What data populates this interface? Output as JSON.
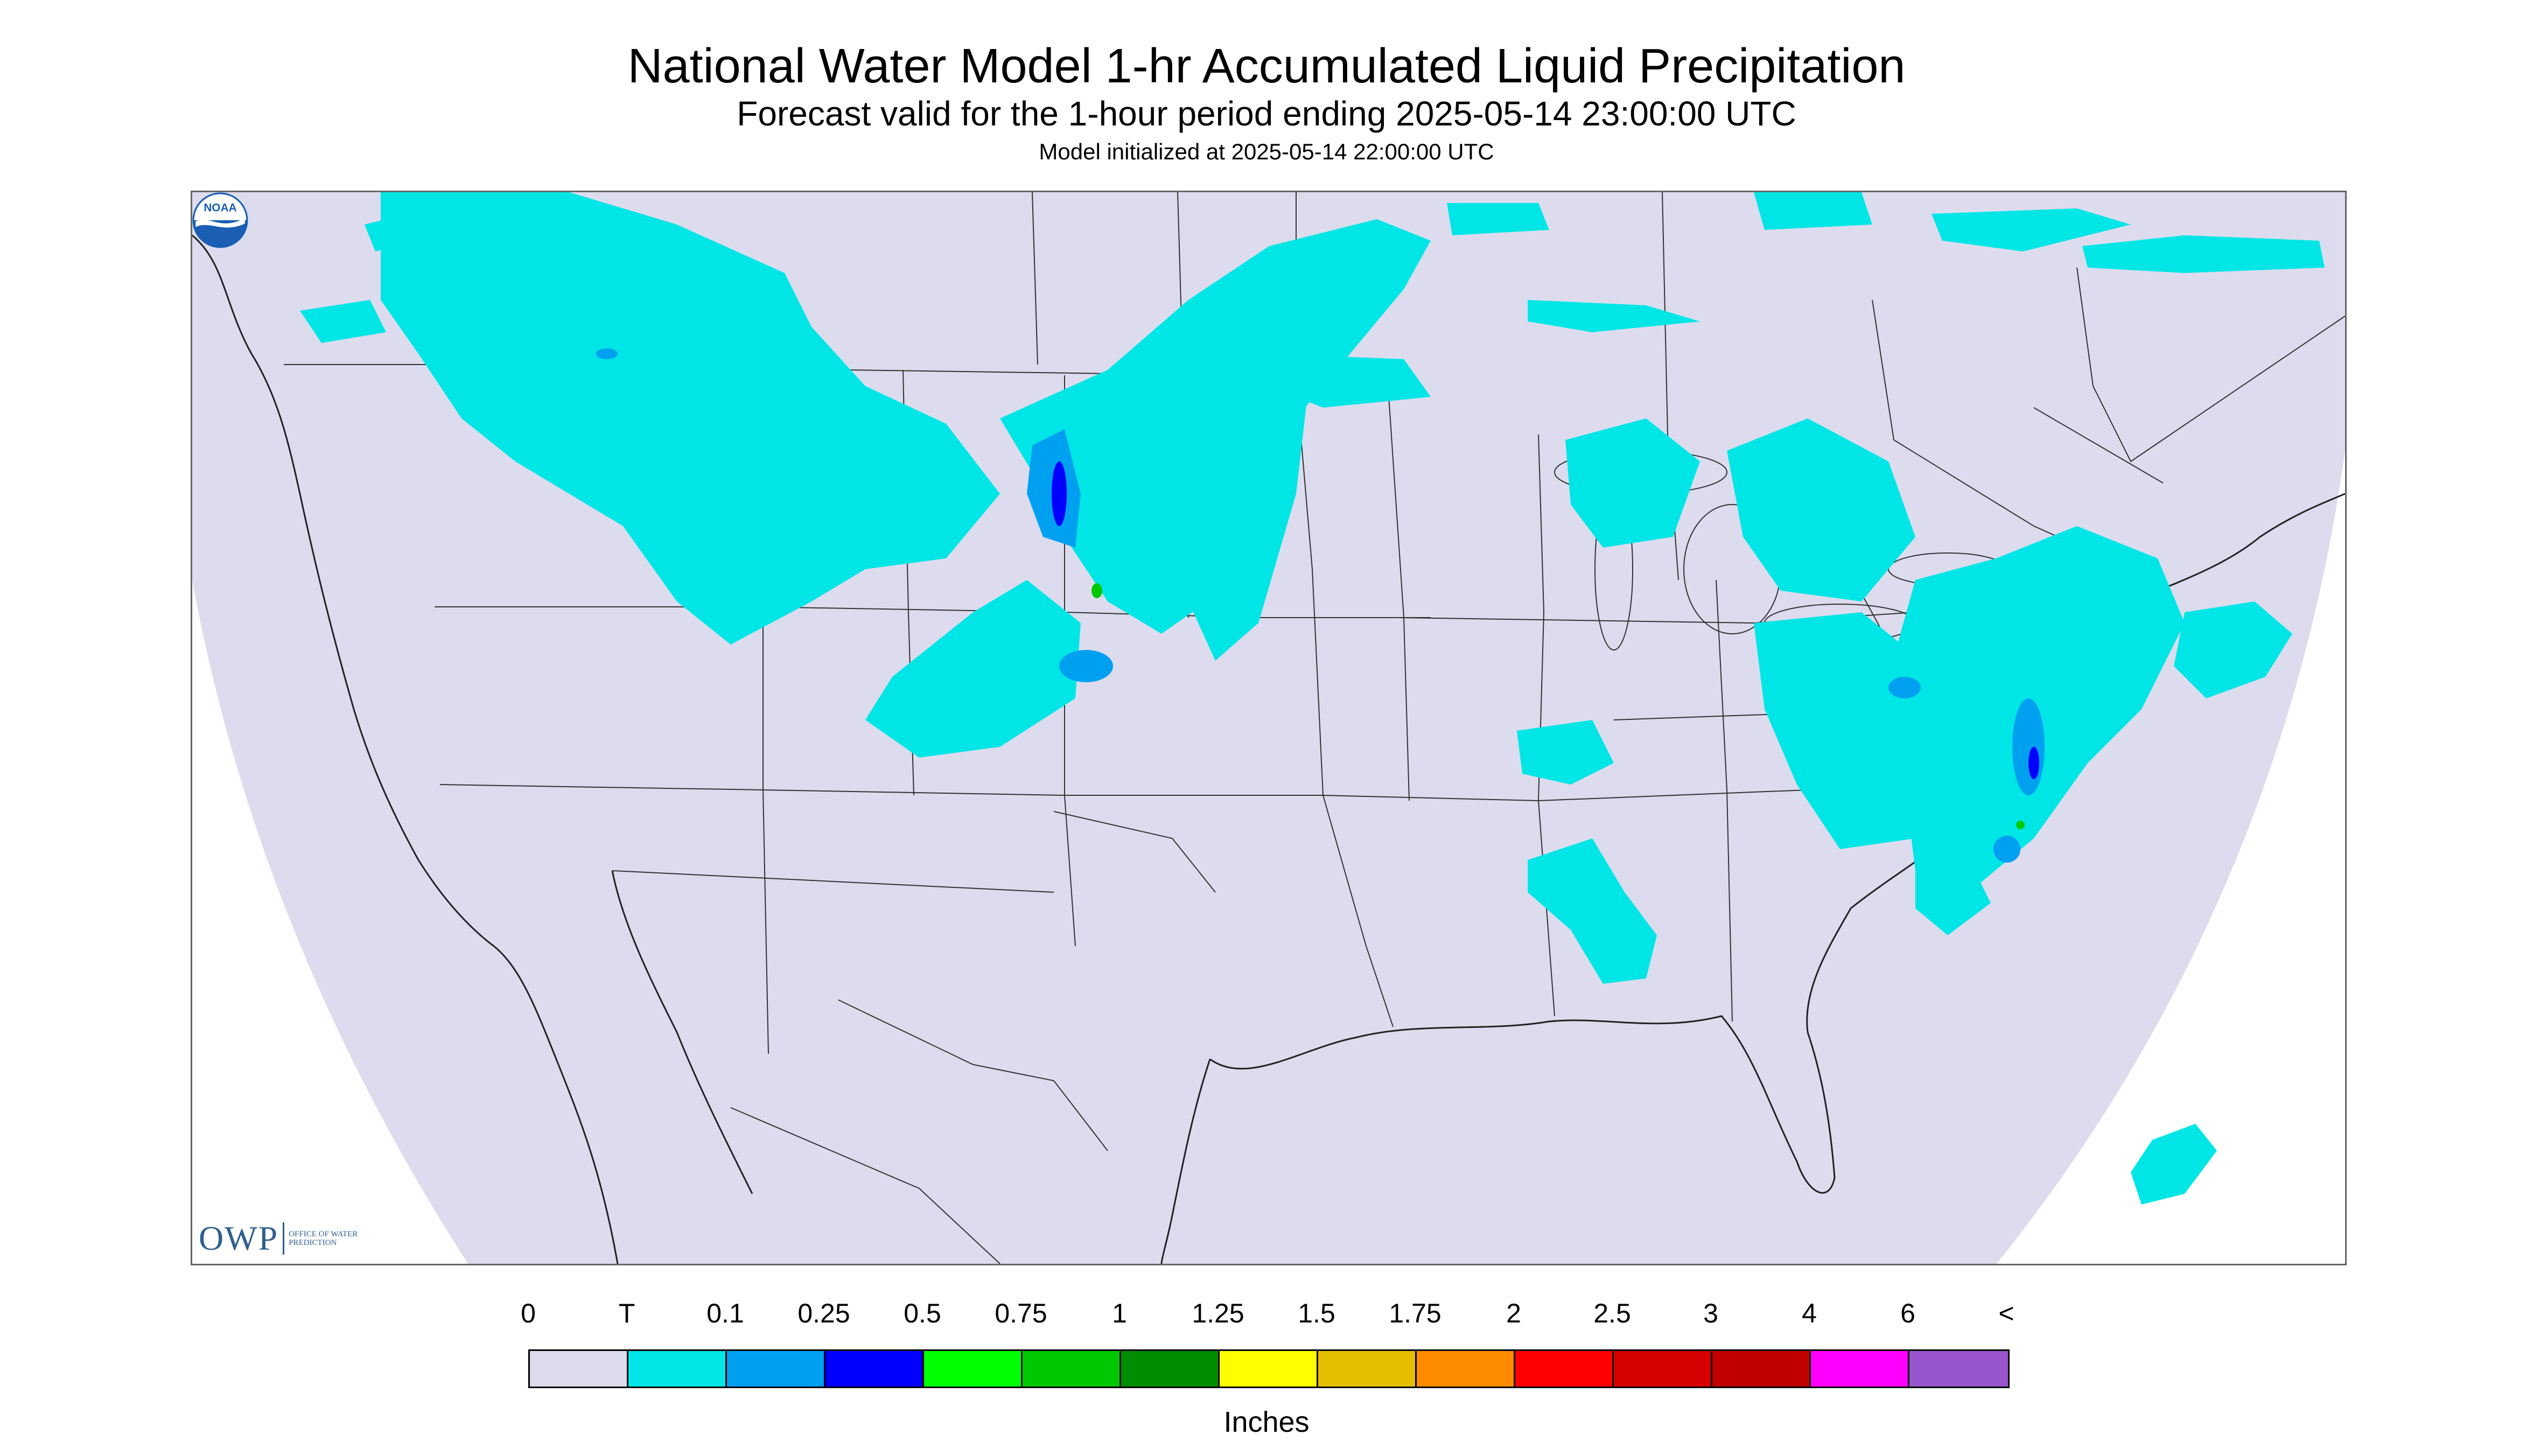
{
  "header": {
    "title": "National Water Model 1-hr Accumulated Liquid Precipitation",
    "subtitle": "Forecast valid for the 1-hour period ending 2025-05-14 23:00:00 UTC",
    "initialized": "Model initialized at 2025-05-14 22:00:00 UTC"
  },
  "map": {
    "projection_fill": "#dcdcee",
    "outside_fill": "#ffffff",
    "border_color": "#222222",
    "owp_logo": {
      "mark": "OWP",
      "text": "OFFICE OF WATER PREDICTION",
      "color": "#2f5f8f"
    },
    "noaa_logo": {
      "icon": "noaa-logo-icon",
      "text": "NOAA",
      "color": "#1a5fb4"
    }
  },
  "legend": {
    "labels": [
      "0",
      "T",
      "0.1",
      "0.25",
      "0.5",
      "0.75",
      "1",
      "1.25",
      "1.5",
      "1.75",
      "2",
      "2.5",
      "3",
      "4",
      "6",
      "<"
    ],
    "colors": [
      "#dcdcee",
      "#00e6e6",
      "#00a0f0",
      "#0000ff",
      "#00ff00",
      "#00c800",
      "#008c00",
      "#ffff00",
      "#e6be00",
      "#ff8c00",
      "#ff0000",
      "#d70000",
      "#c00000",
      "#ff00ff",
      "#9955cc"
    ],
    "units": "Inches"
  }
}
